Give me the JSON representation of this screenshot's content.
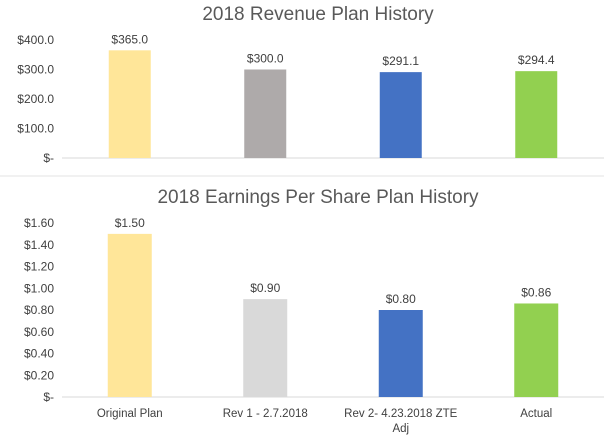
{
  "chart_data": [
    {
      "type": "bar",
      "title": "2018 Revenue Plan History",
      "categories": [
        "Original Plan",
        "Rev 1 - 2.7.2018",
        "Rev 2- 4.23.2018 ZTE Adj",
        "Actual"
      ],
      "values": [
        365.0,
        300.0,
        291.1,
        294.4
      ],
      "data_labels": [
        "$365.0",
        "$300.0",
        "$291.1",
        "$294.4"
      ],
      "ylim": [
        0,
        400
      ],
      "yticks": [
        0,
        100,
        200,
        300,
        400
      ],
      "ytick_labels": [
        "$-",
        "$100.0",
        "$200.0",
        "$300.0",
        "$400.0"
      ],
      "show_category_labels": false,
      "grid": false,
      "bar_colors": [
        "#FFE699",
        "#AEAAAA",
        "#4472C4",
        "#92D050"
      ]
    },
    {
      "type": "bar",
      "title": "2018 Earnings Per Share Plan History",
      "categories": [
        "Original Plan",
        "Rev 1 - 2.7.2018",
        "Rev 2- 4.23.2018 ZTE Adj",
        "Actual"
      ],
      "values": [
        1.5,
        0.9,
        0.8,
        0.86
      ],
      "data_labels": [
        "$1.50",
        "$0.90",
        "$0.80",
        "$0.86"
      ],
      "ylim": [
        0,
        1.6
      ],
      "yticks": [
        0,
        0.2,
        0.4,
        0.6,
        0.8,
        1.0,
        1.2,
        1.4,
        1.6
      ],
      "ytick_labels": [
        "$-",
        "$0.20",
        "$0.40",
        "$0.60",
        "$0.80",
        "$1.00",
        "$1.20",
        "$1.40",
        "$1.60"
      ],
      "show_category_labels": true,
      "grid": false,
      "bar_colors": [
        "#FFE699",
        "#D9D9D9",
        "#4472C4",
        "#92D050"
      ]
    }
  ]
}
